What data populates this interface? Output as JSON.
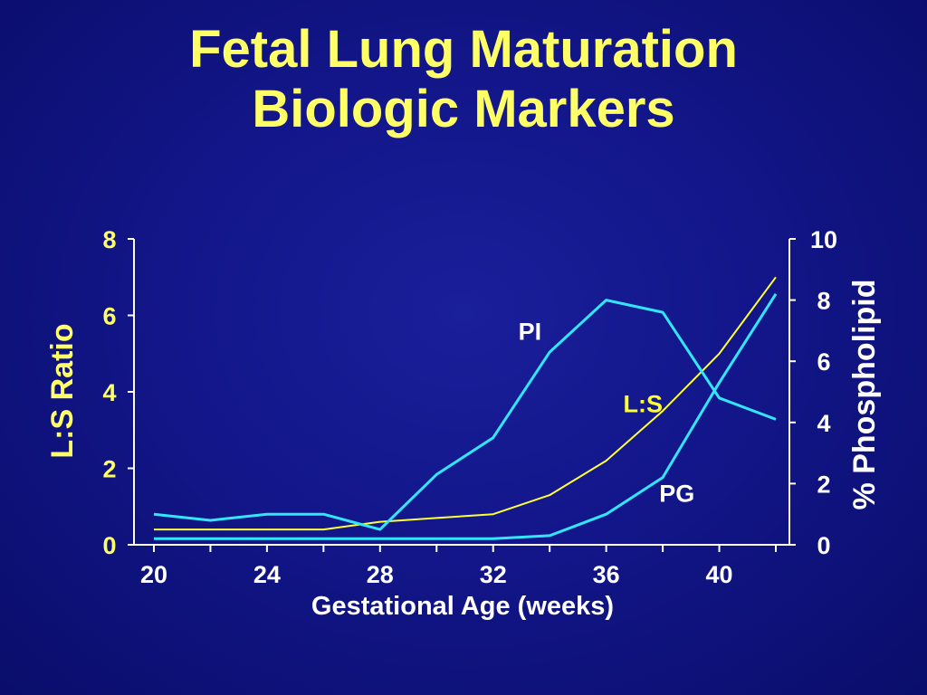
{
  "title_line1": "Fetal Lung Maturation",
  "title_line2": "Biologic Markers",
  "chart_data": {
    "type": "line",
    "title": "Fetal Lung Maturation Biologic Markers",
    "xlabel": "Gestational Age (weeks)",
    "ylabel_left": "L:S Ratio",
    "ylabel_right": "% Phospholipid",
    "xlim": [
      20,
      42
    ],
    "ylim_left": [
      0,
      8
    ],
    "ylim_right": [
      0,
      10
    ],
    "x_ticks": [
      20,
      24,
      28,
      32,
      36,
      40
    ],
    "y_left_ticks": [
      0,
      2,
      4,
      6,
      8
    ],
    "y_right_ticks": [
      0,
      2,
      4,
      6,
      8,
      10
    ],
    "x": [
      20,
      22,
      24,
      26,
      28,
      30,
      32,
      34,
      36,
      38,
      40,
      42
    ],
    "grid": false,
    "colors": {
      "ls": "#ffff33",
      "pi": "#33e6ff",
      "pg": "#33e6ff",
      "axis": "#ffffff",
      "left_axis_labels": "#ffff66",
      "right_axis_labels": "#ffffff"
    },
    "series": [
      {
        "name": "L:S",
        "axis": "left",
        "values": [
          0.4,
          0.4,
          0.4,
          0.4,
          0.6,
          0.7,
          0.8,
          1.3,
          2.2,
          3.5,
          5.0,
          7.0
        ],
        "label_x": 37.3,
        "label_y": 3.7
      },
      {
        "name": "PI",
        "axis": "right",
        "values": [
          1.0,
          0.8,
          1.0,
          1.0,
          0.5,
          2.3,
          3.5,
          6.3,
          8.0,
          7.6,
          4.8,
          4.1
        ],
        "label_x": 33.3,
        "label_y": 7.0
      },
      {
        "name": "PG",
        "axis": "right",
        "values": [
          0.2,
          0.2,
          0.2,
          0.2,
          0.2,
          0.2,
          0.2,
          0.3,
          1.0,
          2.2,
          5.3,
          8.2
        ],
        "label_x": 38.5,
        "label_y": 1.7
      }
    ]
  }
}
